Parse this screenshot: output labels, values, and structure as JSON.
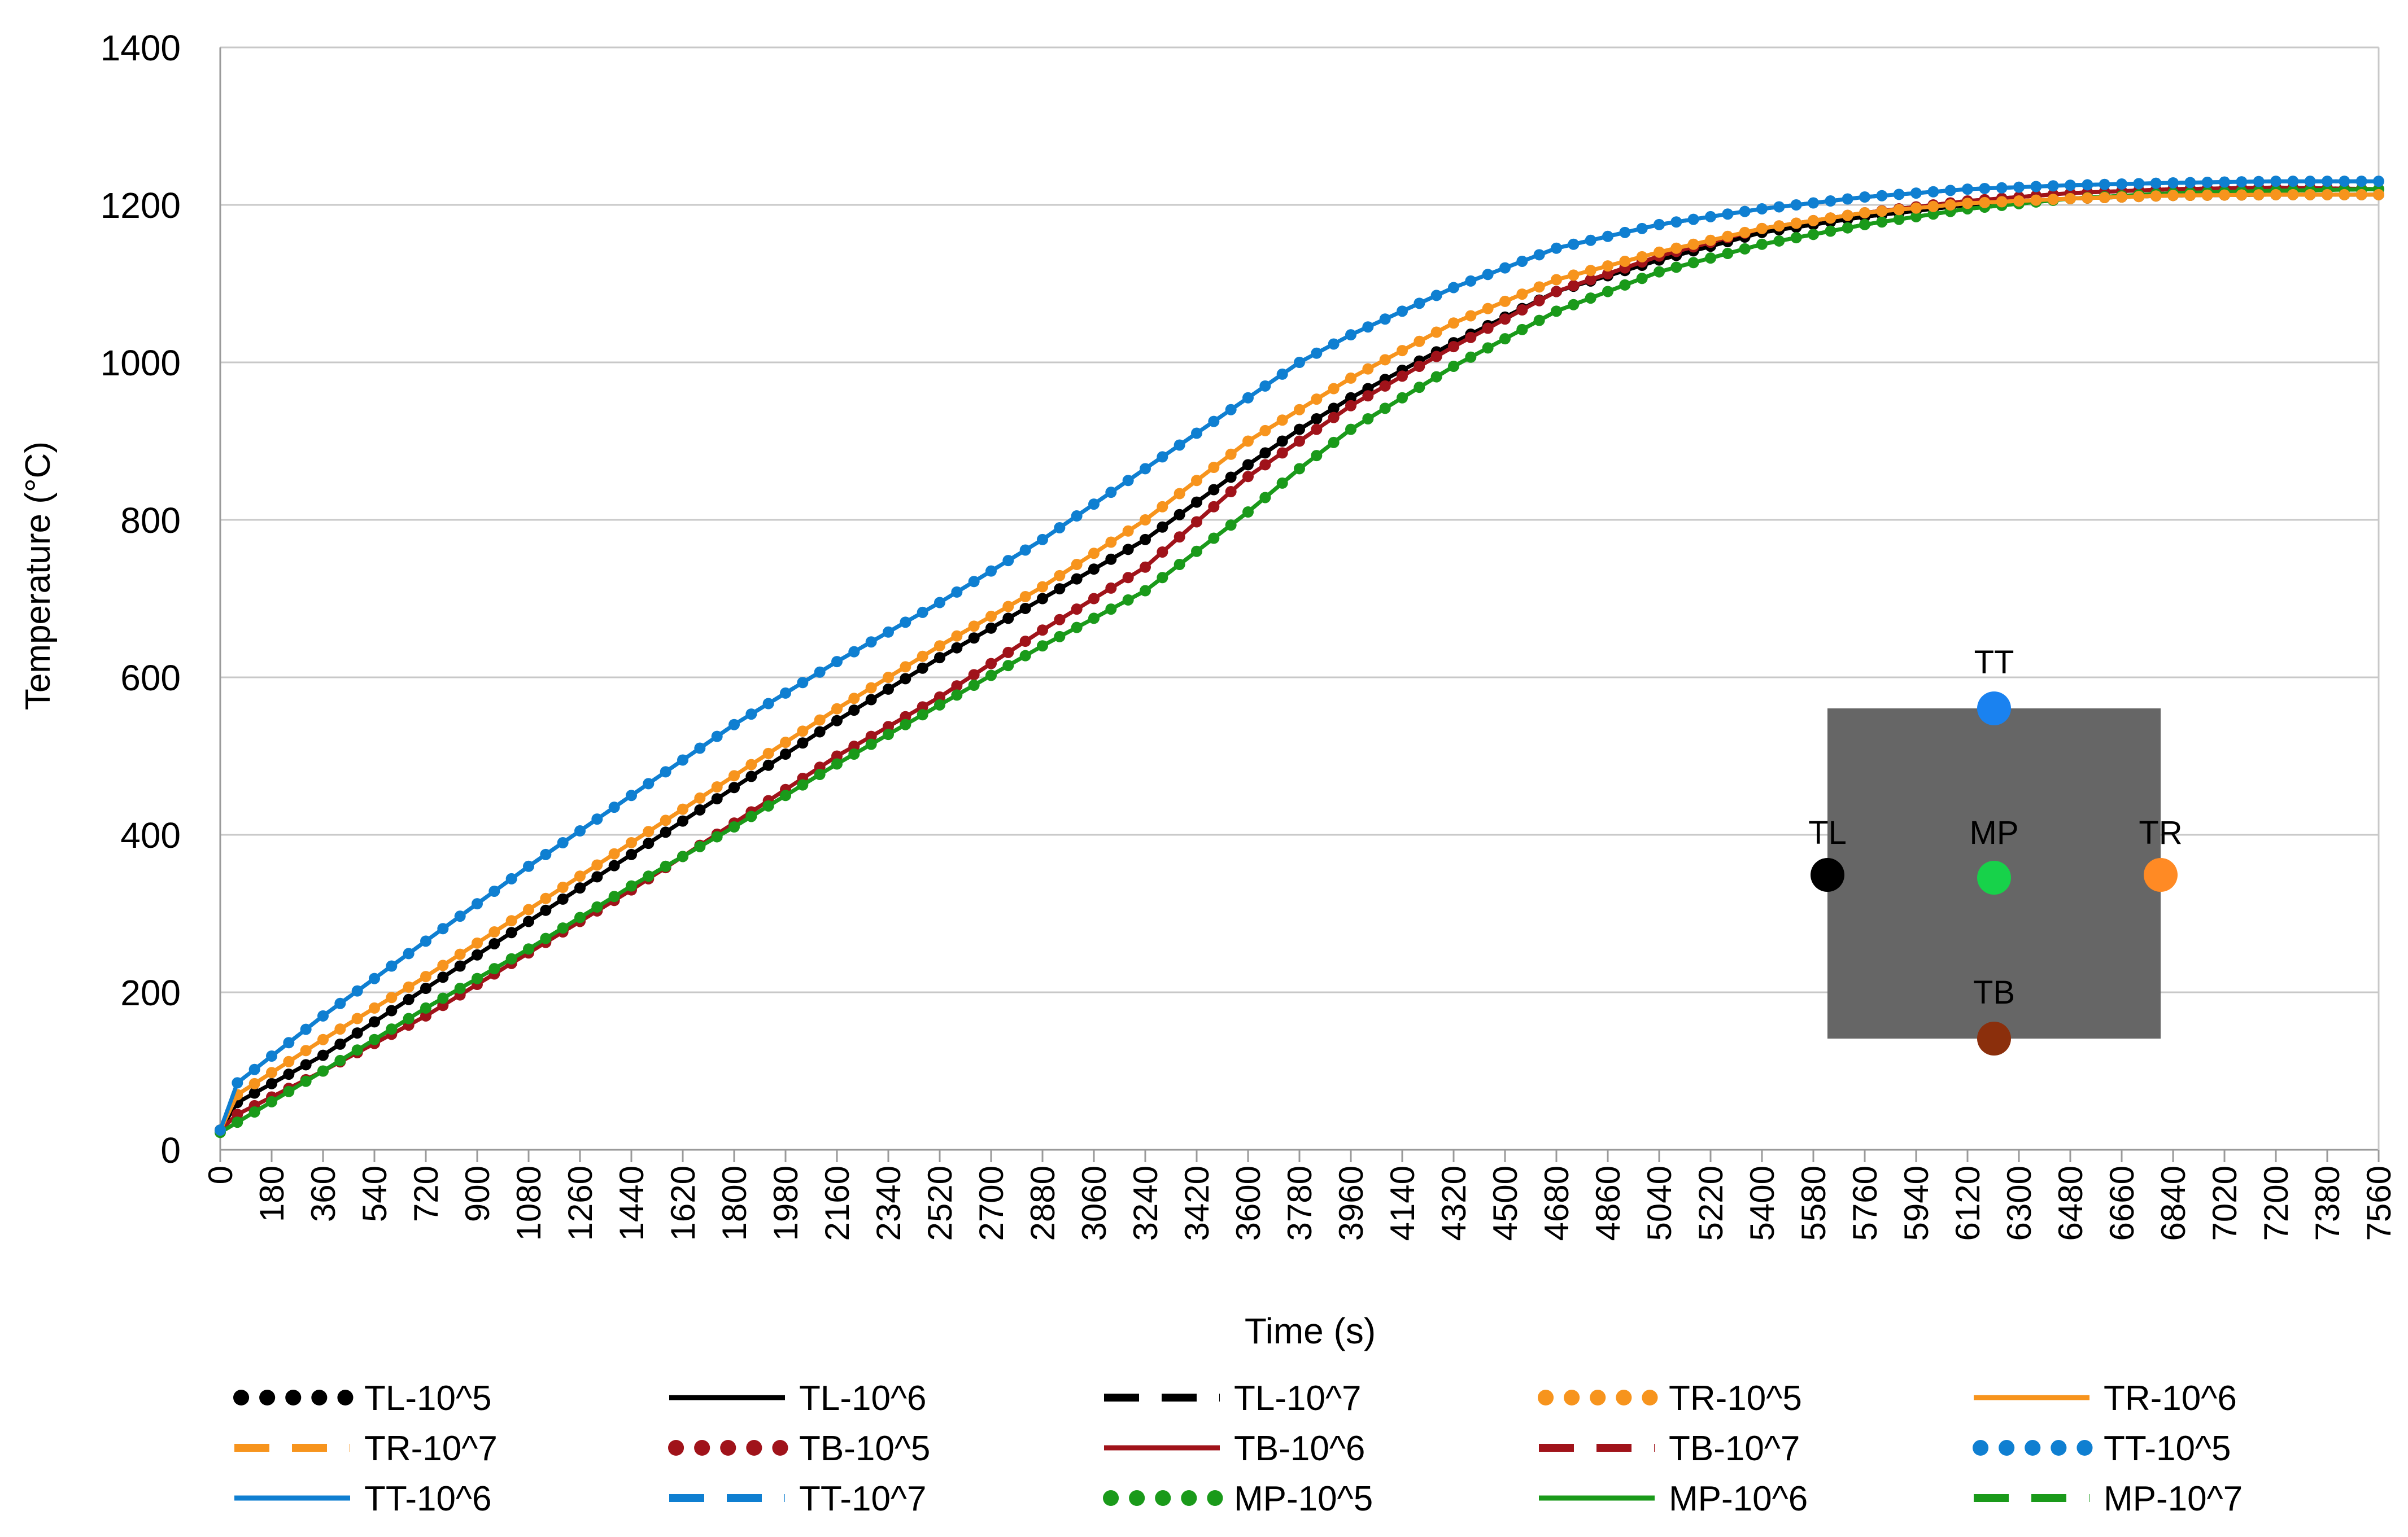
{
  "chart_data": {
    "type": "line",
    "title": "",
    "xlabel": "Time (s)",
    "ylabel": "Temperature (°C)",
    "xlim": [
      0,
      7560
    ],
    "ylim": [
      0,
      1400
    ],
    "x_tick_step": 180,
    "y_ticks": [
      0,
      200,
      400,
      600,
      800,
      1000,
      1200,
      1400
    ],
    "grid": "horizontal",
    "legend_position": "bottom",
    "series": [
      {
        "name": "TL-10^5",
        "color": "#000000",
        "style": "dotted",
        "x": [
          0,
          60,
          360,
          720,
          1080,
          1440,
          1800,
          2160,
          2520,
          2880,
          3240,
          3600,
          3780,
          3960,
          4320,
          4680,
          5040,
          5400,
          5760,
          6120,
          6480,
          6840,
          7200,
          7560
        ],
        "y": [
          25,
          60,
          120,
          205,
          290,
          375,
          460,
          545,
          625,
          700,
          775,
          870,
          915,
          955,
          1025,
          1090,
          1130,
          1165,
          1185,
          1200,
          1208,
          1212,
          1213,
          1213
        ]
      },
      {
        "name": "TL-10^6",
        "color": "#000000",
        "style": "solid",
        "x": [
          0,
          60,
          360,
          720,
          1080,
          1440,
          1800,
          2160,
          2520,
          2880,
          3240,
          3600,
          3780,
          3960,
          4320,
          4680,
          5040,
          5400,
          5760,
          6120,
          6480,
          6840,
          7200,
          7560
        ],
        "y": [
          25,
          60,
          120,
          205,
          290,
          375,
          460,
          545,
          625,
          700,
          775,
          870,
          915,
          955,
          1025,
          1090,
          1130,
          1165,
          1185,
          1200,
          1208,
          1212,
          1213,
          1213
        ]
      },
      {
        "name": "TL-10^7",
        "color": "#000000",
        "style": "dashed",
        "x": [
          0,
          60,
          360,
          720,
          1080,
          1440,
          1800,
          2160,
          2520,
          2880,
          3240,
          3600,
          3780,
          3960,
          4320,
          4680,
          5040,
          5400,
          5760,
          6120,
          6480,
          6840,
          7200,
          7560
        ],
        "y": [
          25,
          60,
          120,
          205,
          290,
          375,
          460,
          545,
          625,
          700,
          775,
          870,
          915,
          955,
          1025,
          1090,
          1130,
          1165,
          1185,
          1200,
          1208,
          1212,
          1213,
          1213
        ]
      },
      {
        "name": "TR-10^5",
        "color": "#F7941D",
        "style": "dotted",
        "x": [
          0,
          60,
          360,
          720,
          1080,
          1440,
          1800,
          2160,
          2520,
          2880,
          3240,
          3600,
          3780,
          3960,
          4320,
          4680,
          5040,
          5400,
          5760,
          6120,
          6480,
          6840,
          7200,
          7560
        ],
        "y": [
          25,
          70,
          140,
          220,
          305,
          390,
          475,
          560,
          640,
          715,
          800,
          900,
          940,
          980,
          1050,
          1105,
          1140,
          1170,
          1190,
          1202,
          1208,
          1212,
          1213,
          1213
        ]
      },
      {
        "name": "TR-10^6",
        "color": "#F7941D",
        "style": "solid",
        "x": [
          0,
          60,
          360,
          720,
          1080,
          1440,
          1800,
          2160,
          2520,
          2880,
          3240,
          3600,
          3780,
          3960,
          4320,
          4680,
          5040,
          5400,
          5760,
          6120,
          6480,
          6840,
          7200,
          7560
        ],
        "y": [
          25,
          70,
          140,
          220,
          305,
          390,
          475,
          560,
          640,
          715,
          800,
          900,
          940,
          980,
          1050,
          1105,
          1140,
          1170,
          1190,
          1202,
          1208,
          1212,
          1213,
          1213
        ]
      },
      {
        "name": "TR-10^7",
        "color": "#F7941D",
        "style": "dashed",
        "x": [
          0,
          60,
          360,
          720,
          1080,
          1440,
          1800,
          2160,
          2520,
          2880,
          3240,
          3600,
          3780,
          3960,
          4320,
          4680,
          5040,
          5400,
          5760,
          6120,
          6480,
          6840,
          7200,
          7560
        ],
        "y": [
          25,
          70,
          140,
          220,
          305,
          390,
          475,
          560,
          640,
          715,
          800,
          900,
          940,
          980,
          1050,
          1105,
          1140,
          1170,
          1190,
          1202,
          1208,
          1212,
          1213,
          1213
        ]
      },
      {
        "name": "TB-10^5",
        "color": "#A0131A",
        "style": "dotted",
        "x": [
          0,
          60,
          360,
          720,
          1080,
          1440,
          1800,
          2160,
          2520,
          2880,
          3240,
          3600,
          3780,
          3960,
          4320,
          4680,
          5040,
          5400,
          5760,
          6120,
          6480,
          6840,
          7200,
          7560
        ],
        "y": [
          25,
          45,
          100,
          170,
          250,
          330,
          415,
          500,
          575,
          660,
          740,
          855,
          900,
          945,
          1020,
          1090,
          1135,
          1170,
          1190,
          1205,
          1215,
          1220,
          1222,
          1220
        ]
      },
      {
        "name": "TB-10^6",
        "color": "#A0131A",
        "style": "solid",
        "x": [
          0,
          60,
          360,
          720,
          1080,
          1440,
          1800,
          2160,
          2520,
          2880,
          3240,
          3600,
          3780,
          3960,
          4320,
          4680,
          5040,
          5400,
          5760,
          6120,
          6480,
          6840,
          7200,
          7560
        ],
        "y": [
          25,
          45,
          100,
          170,
          250,
          330,
          415,
          500,
          575,
          660,
          740,
          855,
          900,
          945,
          1020,
          1090,
          1135,
          1170,
          1190,
          1205,
          1215,
          1220,
          1222,
          1220
        ]
      },
      {
        "name": "TB-10^7",
        "color": "#A0131A",
        "style": "dashed",
        "x": [
          0,
          60,
          360,
          720,
          1080,
          1440,
          1800,
          2160,
          2520,
          2880,
          3240,
          3600,
          3780,
          3960,
          4320,
          4680,
          5040,
          5400,
          5760,
          6120,
          6480,
          6840,
          7200,
          7560
        ],
        "y": [
          25,
          45,
          100,
          170,
          250,
          330,
          415,
          500,
          575,
          660,
          740,
          855,
          900,
          945,
          1020,
          1090,
          1135,
          1170,
          1190,
          1205,
          1215,
          1220,
          1222,
          1220
        ]
      },
      {
        "name": "TT-10^5",
        "color": "#0F7FD1",
        "style": "dotted",
        "x": [
          0,
          60,
          360,
          720,
          1080,
          1440,
          1800,
          2160,
          2520,
          2880,
          3240,
          3600,
          3780,
          3960,
          4320,
          4680,
          5040,
          5400,
          5760,
          6120,
          6480,
          6840,
          7200,
          7560
        ],
        "y": [
          25,
          85,
          170,
          265,
          360,
          450,
          540,
          620,
          695,
          775,
          865,
          955,
          1000,
          1035,
          1095,
          1145,
          1175,
          1195,
          1210,
          1220,
          1225,
          1228,
          1230,
          1230
        ]
      },
      {
        "name": "TT-10^6",
        "color": "#0F7FD1",
        "style": "solid",
        "x": [
          0,
          60,
          360,
          720,
          1080,
          1440,
          1800,
          2160,
          2520,
          2880,
          3240,
          3600,
          3780,
          3960,
          4320,
          4680,
          5040,
          5400,
          5760,
          6120,
          6480,
          6840,
          7200,
          7560
        ],
        "y": [
          25,
          85,
          170,
          265,
          360,
          450,
          540,
          620,
          695,
          775,
          865,
          955,
          1000,
          1035,
          1095,
          1145,
          1175,
          1195,
          1210,
          1220,
          1225,
          1228,
          1230,
          1230
        ]
      },
      {
        "name": "TT-10^7",
        "color": "#0F7FD1",
        "style": "dashed",
        "x": [
          0,
          60,
          360,
          720,
          1080,
          1440,
          1800,
          2160,
          2520,
          2880,
          3240,
          3600,
          3780,
          3960,
          4320,
          4680,
          5040,
          5400,
          5760,
          6120,
          6480,
          6840,
          7200,
          7560
        ],
        "y": [
          25,
          85,
          170,
          265,
          360,
          450,
          540,
          620,
          695,
          775,
          865,
          955,
          1000,
          1035,
          1095,
          1145,
          1175,
          1195,
          1210,
          1220,
          1225,
          1228,
          1230,
          1230
        ]
      },
      {
        "name": "MP-10^5",
        "color": "#1A9A1A",
        "style": "dotted",
        "x": [
          0,
          60,
          360,
          720,
          1080,
          1440,
          1800,
          2160,
          2520,
          2880,
          3240,
          3600,
          3780,
          3960,
          4320,
          4680,
          5040,
          5400,
          5760,
          6120,
          6480,
          6840,
          7200,
          7560
        ],
        "y": [
          22,
          35,
          100,
          180,
          255,
          335,
          410,
          490,
          565,
          640,
          710,
          810,
          865,
          915,
          995,
          1065,
          1115,
          1150,
          1175,
          1195,
          1208,
          1215,
          1218,
          1220
        ]
      },
      {
        "name": "MP-10^6",
        "color": "#1A9A1A",
        "style": "solid",
        "x": [
          0,
          60,
          360,
          720,
          1080,
          1440,
          1800,
          2160,
          2520,
          2880,
          3240,
          3600,
          3780,
          3960,
          4320,
          4680,
          5040,
          5400,
          5760,
          6120,
          6480,
          6840,
          7200,
          7560
        ],
        "y": [
          22,
          35,
          100,
          180,
          255,
          335,
          410,
          490,
          565,
          640,
          710,
          810,
          865,
          915,
          995,
          1065,
          1115,
          1150,
          1175,
          1195,
          1208,
          1215,
          1218,
          1220
        ]
      },
      {
        "name": "MP-10^7",
        "color": "#1A9A1A",
        "style": "dashed",
        "x": [
          0,
          60,
          360,
          720,
          1080,
          1440,
          1800,
          2160,
          2520,
          2880,
          3240,
          3600,
          3780,
          3960,
          4320,
          4680,
          5040,
          5400,
          5760,
          6120,
          6480,
          6840,
          7200,
          7560
        ],
        "y": [
          22,
          35,
          100,
          180,
          255,
          335,
          410,
          490,
          565,
          640,
          710,
          810,
          865,
          915,
          995,
          1065,
          1115,
          1150,
          1175,
          1195,
          1208,
          1215,
          1218,
          1220
        ]
      }
    ],
    "inset": {
      "block_color": "#666666",
      "points": [
        {
          "label": "TT",
          "color": "#1A82F0",
          "position": "top"
        },
        {
          "label": "TL",
          "color": "#000000",
          "position": "left"
        },
        {
          "label": "MP",
          "color": "#17D24A",
          "position": "center"
        },
        {
          "label": "TR",
          "color": "#FF8A24",
          "position": "right"
        },
        {
          "label": "TB",
          "color": "#8B2F0C",
          "position": "bottom"
        }
      ]
    }
  }
}
